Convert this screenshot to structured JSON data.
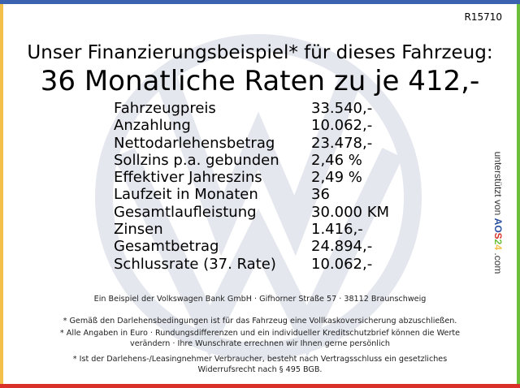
{
  "colors": {
    "top": "#3b63b0",
    "left": "#f5c04a",
    "right": "#6cbf3a",
    "bottom": "#d9302a",
    "watermark": "#e4e7ee"
  },
  "watermark_icon": "vw-logo",
  "ref": "R15710",
  "title": "Unser Finanzierungsbeispiel* für dieses Fahrzeug:",
  "headline": "36 Monatliche Raten zu je 412,-",
  "rows": [
    {
      "label": "Fahrzeugpreis",
      "value": "33.540,-"
    },
    {
      "label": "Anzahlung",
      "value": "10.062,-"
    },
    {
      "label": "Nettodarlehensbetrag",
      "value": "23.478,-"
    },
    {
      "label": "Sollzins p.a. gebunden",
      "value": "2,46 %"
    },
    {
      "label": "Effektiver Jahreszins",
      "value": "2,49 %"
    },
    {
      "label": "Laufzeit in Monaten",
      "value": "36"
    },
    {
      "label": "Gesamtlaufleistung",
      "value": "30.000 KM"
    },
    {
      "label": "Zinsen",
      "value": "1.416,-"
    },
    {
      "label": "Gesamtbetrag",
      "value": "24.894,-"
    },
    {
      "label": "Schlussrate (37. Rate)",
      "value": "10.062,-"
    }
  ],
  "side": {
    "prefix": "unterstützt von ",
    "brand": [
      "A",
      "O",
      "S",
      "2",
      "4"
    ],
    "brand_colors": [
      "#2a4fa0",
      "#2a4fa0",
      "#d9302a",
      "#6cbf3a",
      "#f5c04a"
    ],
    "suffix": " .com"
  },
  "footer": {
    "bank": "Ein Beispiel der Volkswagen Bank GmbH · Gifhorner Straße 57 · 38112 Braunschweig",
    "note1": "* Gemäß den Darlehensbedingungen ist für das Fahrzeug eine Vollkaskoversicherung abzuschließen.",
    "note2a": "* Alle Angaben in Euro · Rundungsdifferenzen und ein individueller Kreditschutzbrief können die Werte",
    "note2b": "verändern · Ihre Wunschrate errechnen wir Ihnen gerne persönlich",
    "note3a": "* Ist der Darlehens-/Leasingnehmer Verbraucher, besteht nach Vertragsschluss ein gesetzliches",
    "note3b": "Widerrufsrecht nach § 495 BGB."
  }
}
